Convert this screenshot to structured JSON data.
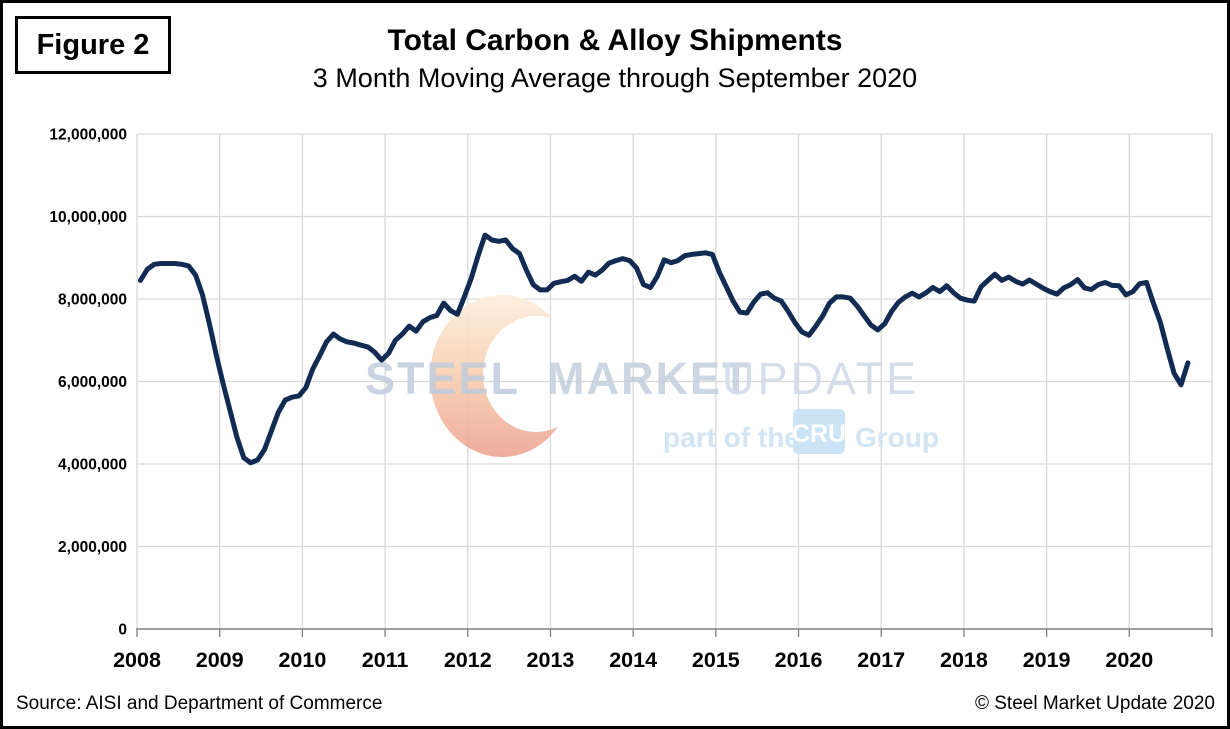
{
  "figure_label": "Figure 2",
  "title": "Total Carbon & Alloy Shipments",
  "subtitle": "3 Month Moving Average through September 2020",
  "source": "Source: AISI and Department of Commerce",
  "copyright": "© Steel Market Update 2020",
  "watermark": {
    "steel": "STEEL",
    "market": "MARKET",
    "update": "UPDATE",
    "part_of_the": "part of the",
    "cru": "CRU",
    "group": "Group",
    "crescent_colors": [
      "#fdeedd",
      "#f9d2b3",
      "#eca593"
    ],
    "text_color_bold": "#c0ccdd",
    "text_color_light": "#d2dbe9",
    "cru_text_color": "#cfe4f5",
    "cru_box_color": "#c8e3f4"
  },
  "colors": {
    "line": "#112b52",
    "gridline": "#d9d9d9",
    "axis": "#808080",
    "label": "#000000"
  },
  "chart_data": {
    "type": "line",
    "title": "Total Carbon & Alloy Shipments",
    "subtitle": "3 Month Moving Average through September 2020",
    "xlabel": "",
    "ylabel": "",
    "frequency": "monthly",
    "x_start": "2008-01",
    "x_end": "2020-09",
    "grid": true,
    "legend": false,
    "ylim": [
      0,
      12000000
    ],
    "ytick_interval": 2000000,
    "yticks": [
      {
        "v": 0,
        "label": "0"
      },
      {
        "v": 2000000,
        "label": "2,000,000"
      },
      {
        "v": 4000000,
        "label": "4,000,000"
      },
      {
        "v": 6000000,
        "label": "6,000,000"
      },
      {
        "v": 8000000,
        "label": "8,000,000"
      },
      {
        "v": 10000000,
        "label": "10,000,000"
      },
      {
        "v": 12000000,
        "label": "12,000,000"
      }
    ],
    "categories_years": [
      2008,
      2009,
      2010,
      2011,
      2012,
      2013,
      2014,
      2015,
      2016,
      2017,
      2018,
      2019,
      2020
    ],
    "x_axis_span_years": 13,
    "values": [
      8450000,
      8720000,
      8840000,
      8860000,
      8860000,
      8860000,
      8840000,
      8800000,
      8580000,
      8100000,
      7400000,
      6650000,
      5950000,
      5300000,
      4650000,
      4150000,
      4030000,
      4100000,
      4350000,
      4800000,
      5250000,
      5550000,
      5620000,
      5650000,
      5850000,
      6300000,
      6620000,
      6960000,
      7150000,
      7030000,
      6960000,
      6930000,
      6880000,
      6840000,
      6710000,
      6520000,
      6680000,
      7000000,
      7150000,
      7340000,
      7220000,
      7450000,
      7550000,
      7600000,
      7900000,
      7720000,
      7630000,
      8050000,
      8500000,
      9050000,
      9550000,
      9430000,
      9400000,
      9430000,
      9220000,
      9100000,
      8700000,
      8350000,
      8220000,
      8220000,
      8380000,
      8420000,
      8450000,
      8550000,
      8430000,
      8650000,
      8580000,
      8700000,
      8870000,
      8930000,
      8980000,
      8930000,
      8750000,
      8350000,
      8280000,
      8550000,
      8950000,
      8880000,
      8930000,
      9050000,
      9080000,
      9100000,
      9120000,
      9080000,
      8650000,
      8300000,
      7950000,
      7680000,
      7660000,
      7920000,
      8120000,
      8150000,
      8020000,
      7950000,
      7700000,
      7420000,
      7200000,
      7120000,
      7340000,
      7590000,
      7900000,
      8050000,
      8050000,
      8020000,
      7830000,
      7600000,
      7370000,
      7250000,
      7400000,
      7700000,
      7920000,
      8050000,
      8140000,
      8050000,
      8150000,
      8280000,
      8180000,
      8320000,
      8150000,
      8020000,
      7970000,
      7950000,
      8300000,
      8450000,
      8600000,
      8450000,
      8530000,
      8430000,
      8360000,
      8460000,
      8360000,
      8260000,
      8180000,
      8120000,
      8270000,
      8350000,
      8470000,
      8270000,
      8230000,
      8350000,
      8400000,
      8330000,
      8320000,
      8100000,
      8180000,
      8370000,
      8400000,
      7900000,
      7440000,
      6800000,
      6200000,
      5920000,
      6450000
    ]
  }
}
